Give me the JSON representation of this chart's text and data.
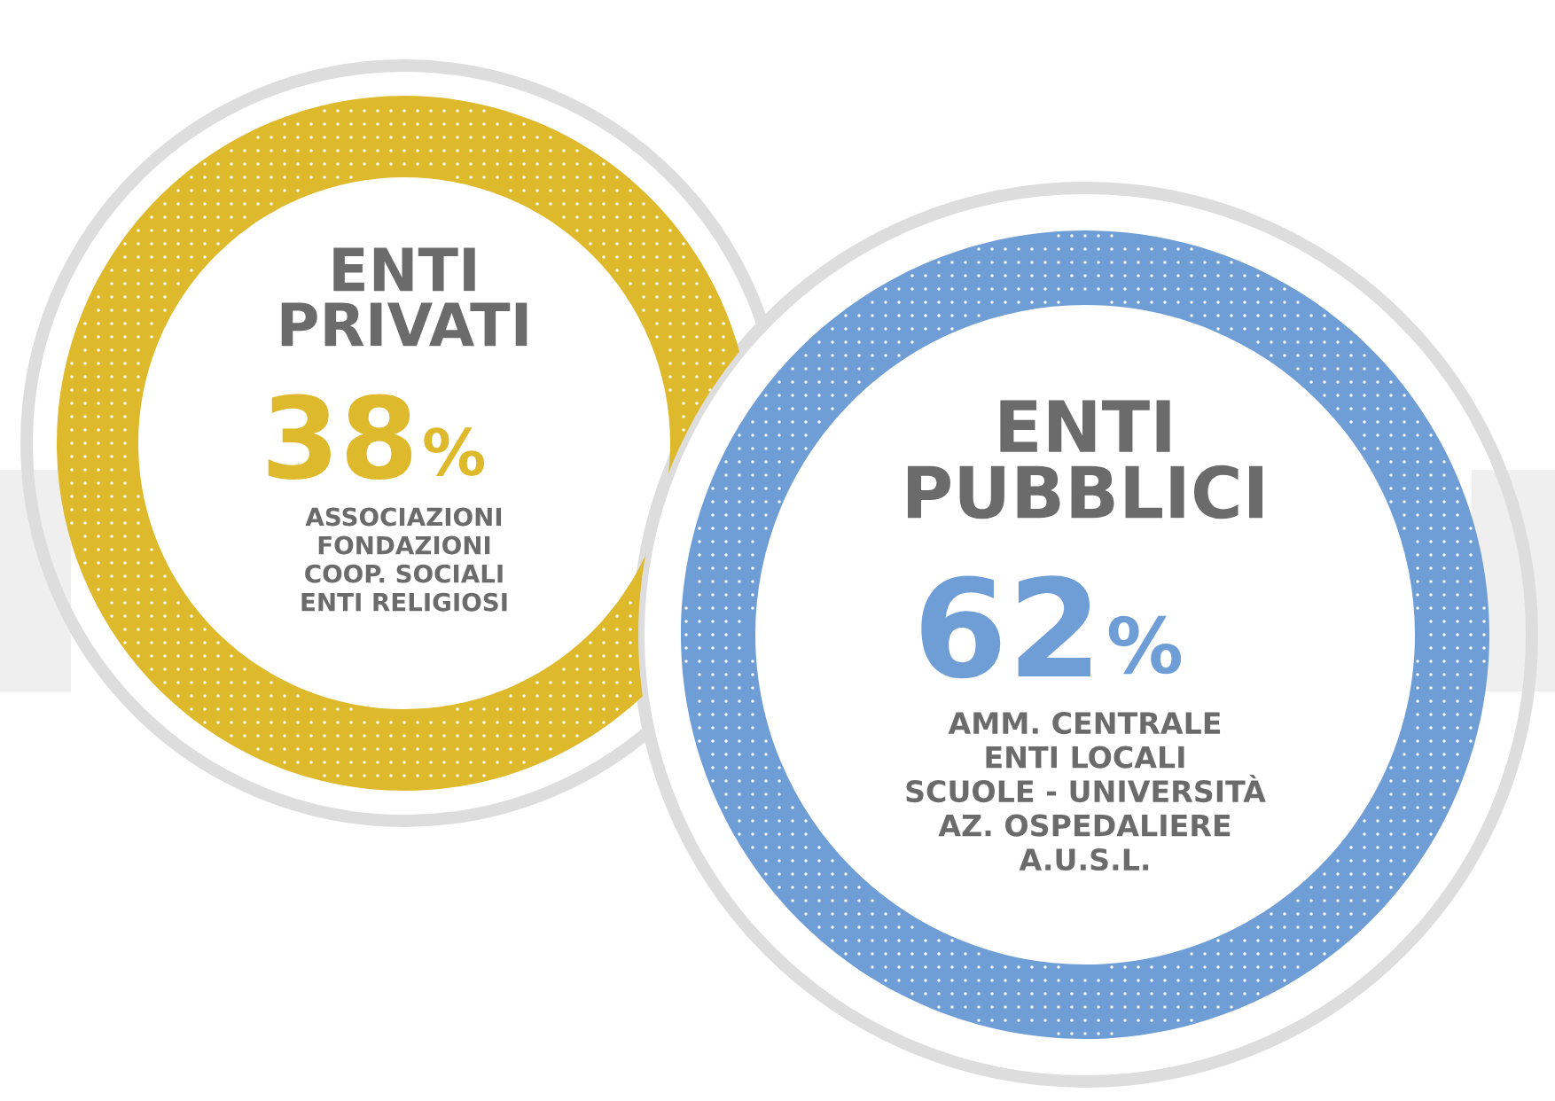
{
  "chart_data": {
    "type": "other",
    "categories": [
      "ENTI\nPRIVATI",
      "ENTI\nPUBBLICI"
    ],
    "values": [
      38,
      62
    ],
    "value_labels": [
      "38%",
      "62%"
    ],
    "colors": [
      "#dfb92c",
      "#6f9dd6"
    ],
    "annotations": [
      "ASSOCIAZIONI\nFONDAZIONI\nCOOP. SOCIALI\nENTI RELIGIOSI",
      "AMM. CENTRALE\nENTI LOCALI\nSCUOLE - UNIVERSITÀ\nAZ. OSPEDALIERE\nA.U.S.L."
    ]
  }
}
